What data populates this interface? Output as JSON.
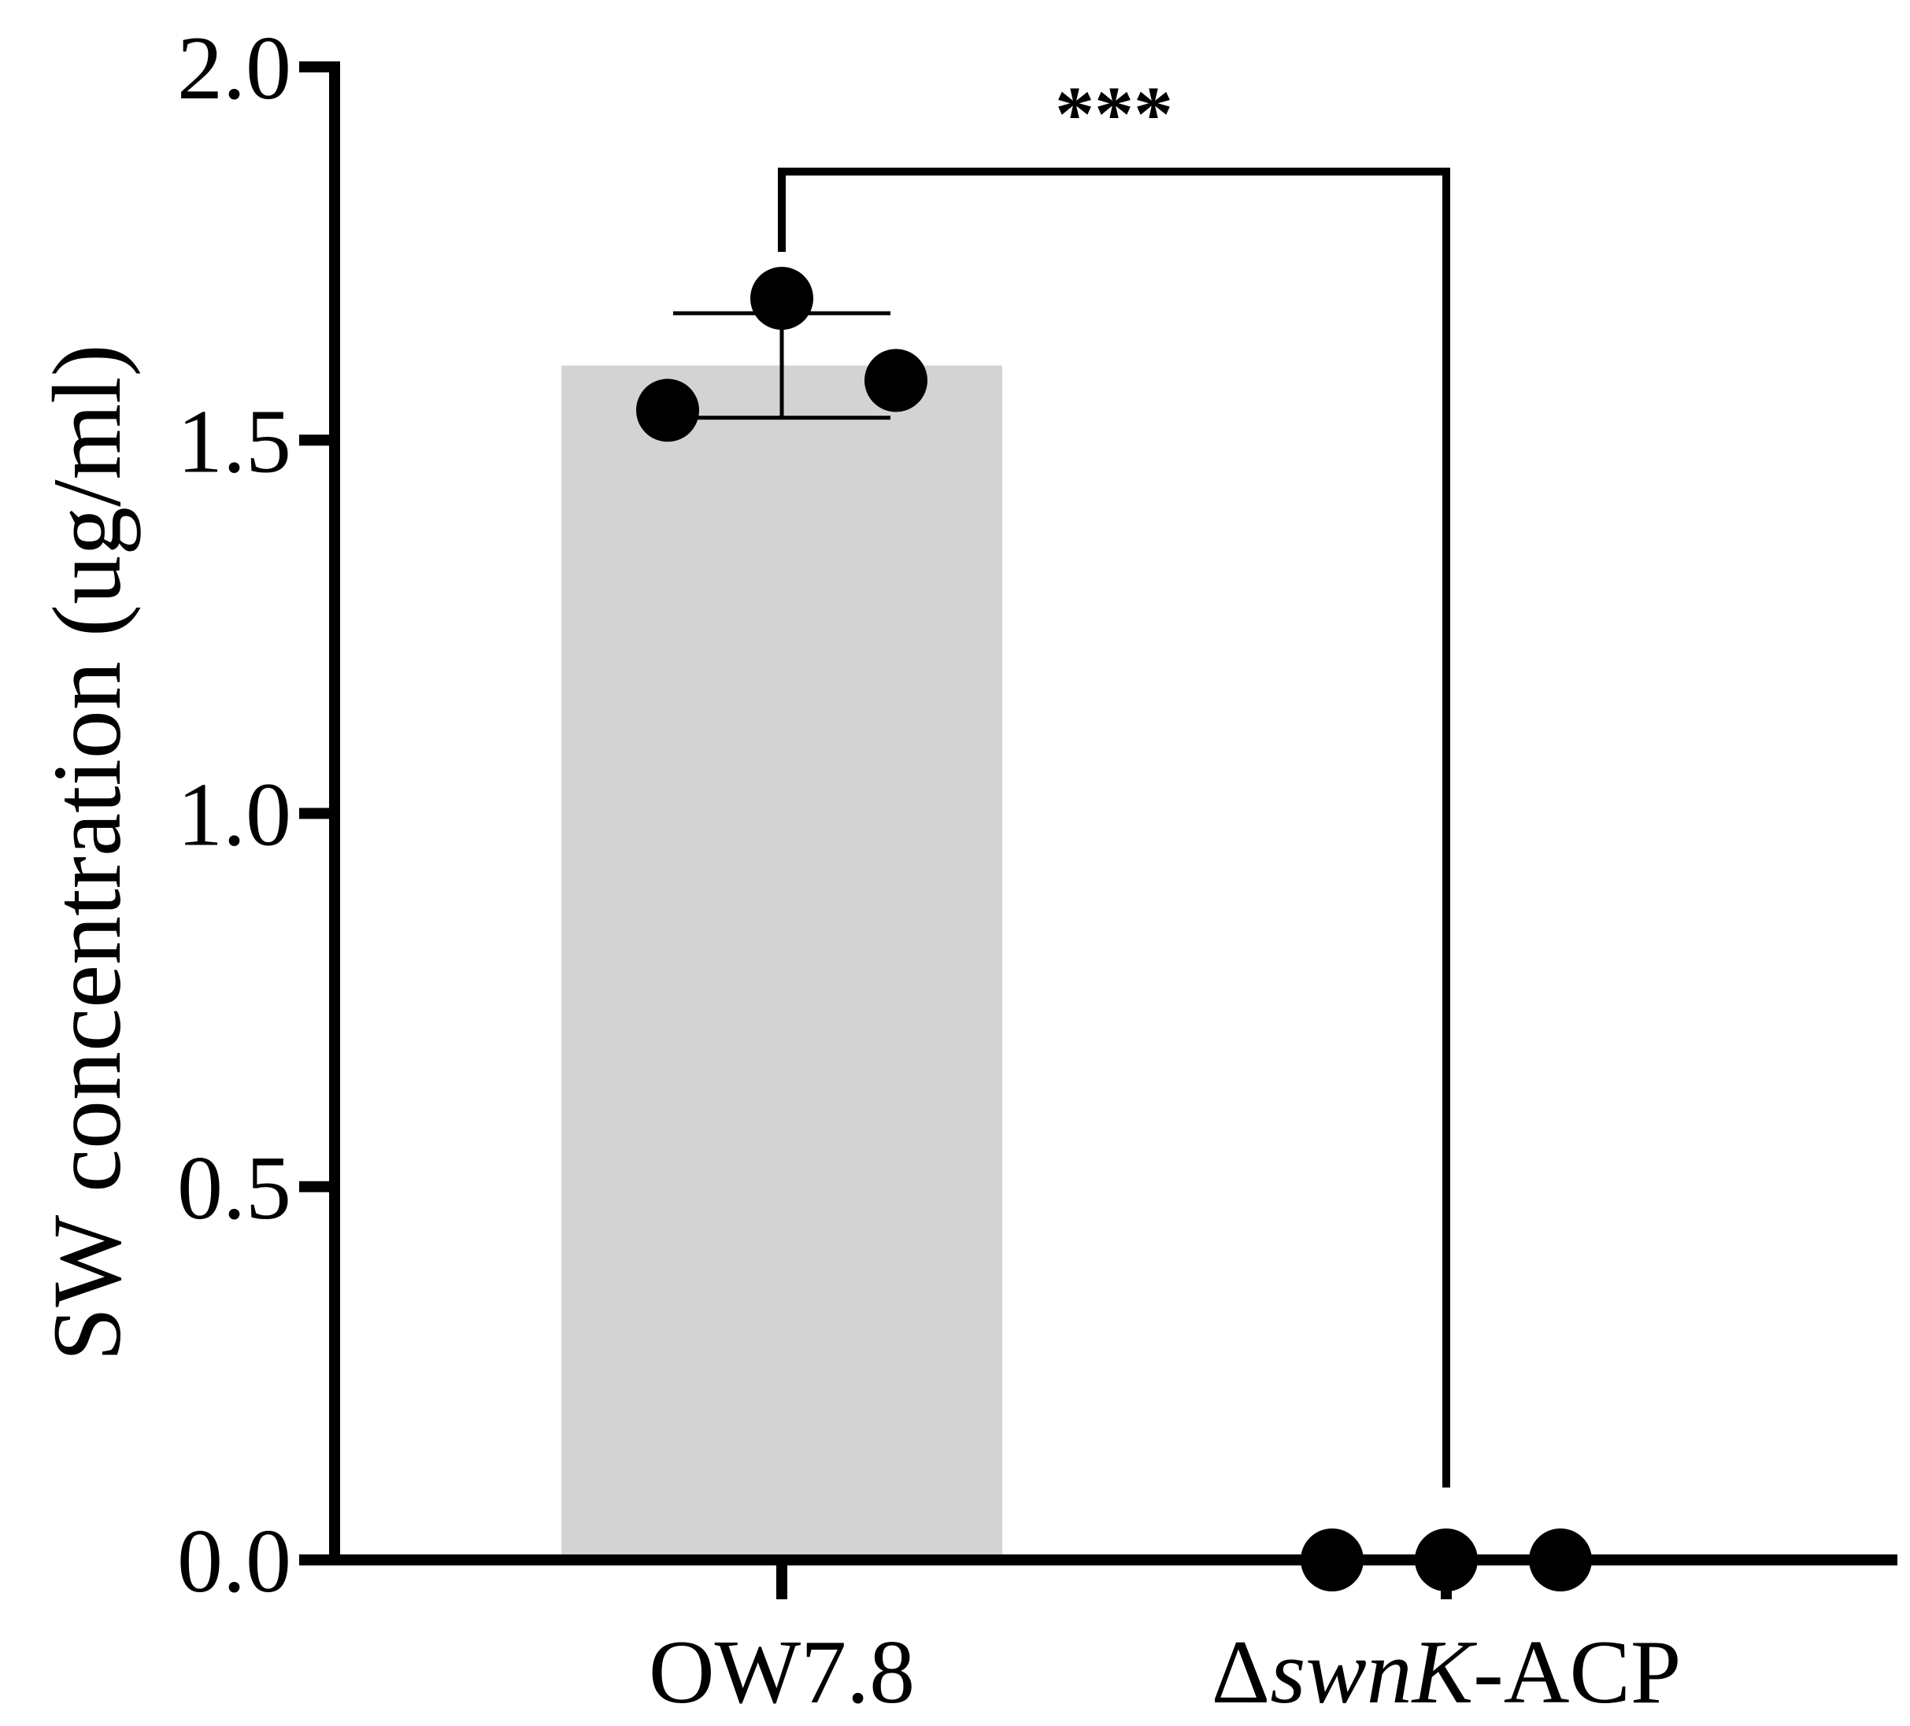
{
  "chart_data": {
    "type": "bar",
    "title": "",
    "ylabel": "SW concentration (ug/ml)",
    "xlabel": "",
    "ylim": [
      0,
      2.0
    ],
    "yticks": [
      "0.0",
      "0.5",
      "1.0",
      "1.5",
      "2.0"
    ],
    "categories": [
      "OW7.8",
      "ΔswnK-ACP"
    ],
    "category_label_parts": [
      [
        {
          "text": "OW7.8",
          "italic": false
        }
      ],
      [
        {
          "text": "Δ",
          "italic": false
        },
        {
          "text": "swnK",
          "italic": true
        },
        {
          "text": "-ACP",
          "italic": false
        }
      ]
    ],
    "values": [
      1.6,
      0.0
    ],
    "error_sd": [
      0.07,
      0.0
    ],
    "points": [
      [
        1.54,
        1.69,
        1.58
      ],
      [
        0.0,
        0.0,
        0.0
      ]
    ],
    "bar_color": "#d3d3d3",
    "point_color": "#000000",
    "significance": {
      "label": "***",
      "between": [
        0,
        1
      ]
    },
    "grid": false,
    "legend": "none"
  }
}
